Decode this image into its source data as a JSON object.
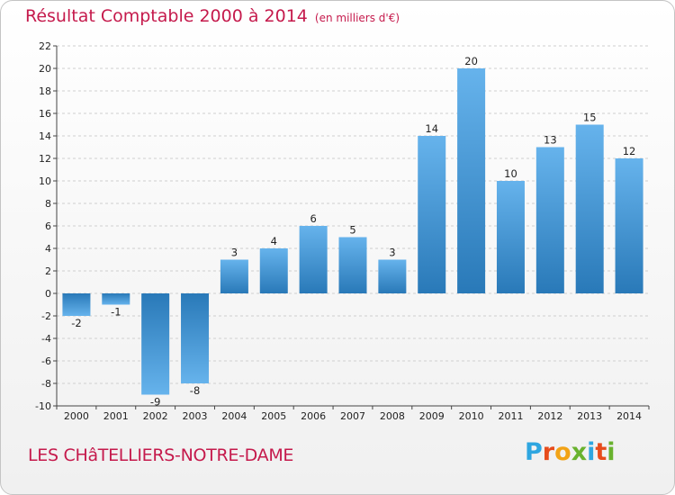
{
  "title": "Résultat Comptable 2000 à 2014",
  "subtitle": "(en milliers d'€)",
  "place": "LES CHâTELLIERS-NOTRE-DAME",
  "logo": {
    "letters": [
      "P",
      "r",
      "o",
      "x",
      "i",
      "t",
      "i"
    ],
    "colors": [
      "#2ea6e0",
      "#e74c1c",
      "#f2a316",
      "#69b22e",
      "#2ea6e0",
      "#e74c1c",
      "#69b22e"
    ]
  },
  "colors": {
    "bar_top": "#66b3ec",
    "bar_bottom": "#2979b8",
    "title": "#c51a4c"
  },
  "chart_data": {
    "type": "bar",
    "categories": [
      "2000",
      "2001",
      "2002",
      "2003",
      "2004",
      "2005",
      "2006",
      "2007",
      "2008",
      "2009",
      "2010",
      "2011",
      "2012",
      "2013",
      "2014"
    ],
    "values": [
      -2,
      -1,
      -9,
      -8,
      3,
      4,
      6,
      5,
      3,
      14,
      20,
      10,
      13,
      15,
      12
    ],
    "value_labels": [
      "-2",
      "-1",
      "-9",
      "-8",
      "3",
      "4",
      "6",
      "5",
      "3",
      "14",
      "20",
      "10",
      "13",
      "15",
      "12"
    ],
    "yticks": [
      "-10",
      "-8",
      "-6",
      "-4",
      "-2",
      "0",
      "2",
      "4",
      "6",
      "8",
      "10",
      "12",
      "14",
      "16",
      "18",
      "20",
      "22"
    ],
    "ylim": [
      -10,
      22
    ],
    "grid": true
  }
}
